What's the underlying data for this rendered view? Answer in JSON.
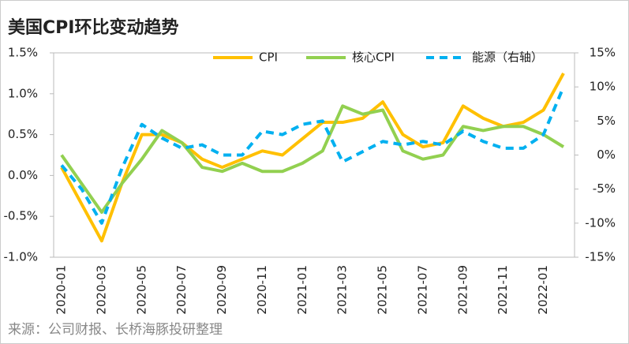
{
  "chart_data": {
    "type": "line",
    "title": "美国CPI环比变动趋势",
    "source": "来源：公司财报、长桥海豚投研整理",
    "categories": [
      "2020-01",
      null,
      "2020-03",
      null,
      "2020-05",
      null,
      "2020-07",
      null,
      "2020-09",
      null,
      "2020-11",
      null,
      "2021-01",
      null,
      "2021-03",
      null,
      "2021-05",
      null,
      "2021-07",
      null,
      "2021-09",
      null,
      "2021-11",
      null,
      "2022-01",
      null
    ],
    "ylim": [
      -1.0,
      1.5
    ],
    "yticks": [
      {
        "value": -1.0,
        "label": "-1.0%"
      },
      {
        "value": -0.5,
        "label": "-0.5%"
      },
      {
        "value": 0.0,
        "label": "0.0%"
      },
      {
        "value": 0.5,
        "label": "0.5%"
      },
      {
        "value": 1.0,
        "label": "1.0%"
      },
      {
        "value": 1.5,
        "label": "1.5%"
      }
    ],
    "y2lim": [
      -15,
      15
    ],
    "y2ticks": [
      {
        "value": -15,
        "label": "-15%"
      },
      {
        "value": -10,
        "label": "-10%"
      },
      {
        "value": -5,
        "label": "-5%"
      },
      {
        "value": 0,
        "label": "0%"
      },
      {
        "value": 5,
        "label": "5%"
      },
      {
        "value": 10,
        "label": "10%"
      },
      {
        "value": 15,
        "label": "15%"
      }
    ],
    "series": [
      {
        "name": "CPI",
        "color": "#FFC000",
        "values": [
          0.1,
          -0.35,
          -0.8,
          -0.1,
          0.5,
          0.5,
          0.4,
          0.2,
          0.1,
          0.2,
          0.3,
          0.25,
          0.45,
          0.65,
          0.65,
          0.7,
          0.9,
          0.5,
          0.35,
          0.4,
          0.85,
          0.7,
          0.6,
          0.65,
          0.8,
          1.25
        ]
      },
      {
        "name": "核心CPI",
        "color": "#92D050",
        "values": [
          0.25,
          -0.1,
          -0.45,
          -0.1,
          0.2,
          0.55,
          0.4,
          0.1,
          0.05,
          0.15,
          0.05,
          0.05,
          0.15,
          0.3,
          0.85,
          0.75,
          0.8,
          0.3,
          0.2,
          0.25,
          0.6,
          0.55,
          0.6,
          0.6,
          0.5,
          0.35
        ]
      },
      {
        "name": "能源（右轴）",
        "color": "#00B0F0",
        "axis": "y2",
        "dashed": true,
        "values": [
          -1.5,
          -5,
          -10,
          -2,
          4.5,
          2.5,
          1,
          1.5,
          0,
          0,
          3.5,
          3,
          4.5,
          5,
          -1,
          0.5,
          2,
          1.5,
          2,
          1.5,
          3.5,
          2,
          1,
          1,
          3,
          10
        ]
      }
    ]
  }
}
